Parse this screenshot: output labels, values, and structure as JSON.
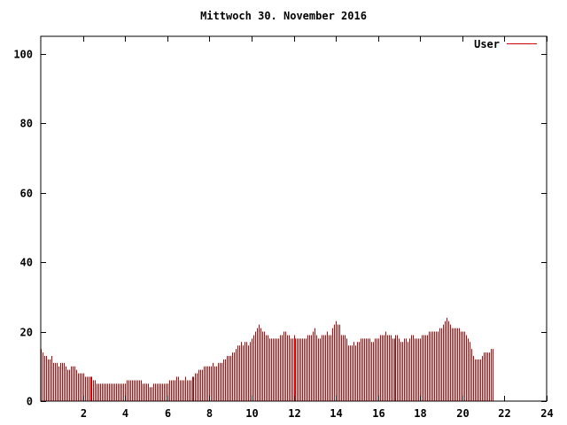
{
  "chart_data": {
    "type": "bar",
    "title": "Mittwoch 30. November 2016",
    "xlabel": "",
    "ylabel": "",
    "xlim": [
      0,
      24
    ],
    "ylim": [
      0,
      105
    ],
    "x_ticks": [
      2,
      4,
      6,
      8,
      10,
      12,
      14,
      16,
      18,
      20,
      22,
      24
    ],
    "y_ticks": [
      0,
      20,
      40,
      60,
      80,
      100
    ],
    "legend": "top-right",
    "grid": false,
    "colors": {
      "series": "#cc0000",
      "axis": "#000000",
      "background": "#ffffff"
    },
    "interval_minutes": 5,
    "series": [
      {
        "name": "User",
        "values": [
          15,
          14,
          13,
          13,
          12,
          12,
          13,
          11,
          11,
          11,
          10,
          11,
          11,
          11,
          10,
          9,
          9,
          10,
          10,
          10,
          9,
          8,
          8,
          8,
          8,
          7,
          7,
          7,
          7,
          7,
          6,
          6,
          5,
          5,
          5,
          5,
          5,
          5,
          5,
          5,
          5,
          5,
          5,
          5,
          5,
          5,
          5,
          5,
          5,
          6,
          6,
          6,
          6,
          6,
          6,
          6,
          6,
          6,
          5,
          5,
          5,
          5,
          4,
          4,
          5,
          5,
          5,
          5,
          5,
          5,
          5,
          5,
          5,
          6,
          6,
          6,
          6,
          7,
          7,
          6,
          6,
          6,
          7,
          6,
          6,
          6,
          7,
          7,
          8,
          8,
          9,
          9,
          9,
          10,
          10,
          10,
          10,
          10,
          11,
          10,
          10,
          11,
          11,
          11,
          12,
          12,
          13,
          13,
          13,
          14,
          14,
          15,
          16,
          16,
          17,
          16,
          17,
          17,
          16,
          17,
          18,
          19,
          20,
          21,
          22,
          21,
          20,
          20,
          19,
          19,
          18,
          18,
          18,
          18,
          18,
          18,
          19,
          19,
          20,
          20,
          19,
          19,
          18,
          18,
          19,
          18,
          18,
          18,
          18,
          18,
          18,
          18,
          19,
          19,
          19,
          20,
          21,
          19,
          18,
          18,
          19,
          19,
          19,
          20,
          19,
          19,
          21,
          22,
          23,
          22,
          22,
          19,
          19,
          19,
          18,
          16,
          16,
          16,
          17,
          16,
          17,
          17,
          18,
          18,
          18,
          18,
          18,
          18,
          17,
          17,
          18,
          18,
          18,
          19,
          19,
          19,
          20,
          19,
          19,
          19,
          18,
          18,
          19,
          19,
          18,
          17,
          17,
          18,
          18,
          17,
          18,
          19,
          19,
          18,
          18,
          18,
          18,
          19,
          19,
          19,
          19,
          20,
          20,
          20,
          20,
          20,
          20,
          21,
          21,
          22,
          23,
          24,
          23,
          22,
          21,
          21,
          21,
          21,
          21,
          20,
          20,
          20,
          19,
          18,
          17,
          15,
          13,
          12,
          12,
          12,
          12,
          13,
          14,
          14,
          14,
          14,
          15,
          15
        ]
      }
    ]
  }
}
